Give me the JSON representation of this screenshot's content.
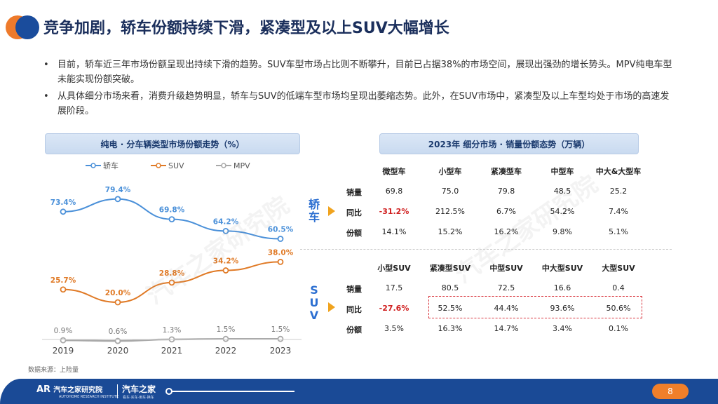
{
  "title": "竞争加剧，轿车份额持续下滑，紧凑型及以上SUV大幅增长",
  "bullets": [
    "目前，轿车近三年市场份额呈现出持续下滑的趋势。SUV车型市场占比则不断攀升，目前已占据38%的市场空间，展现出强劲的增长势头。MPV纯电车型未能实现份额突破。",
    "从具体细分市场来看，消费升级趋势明显，轿车与SUV的低端车型市场均呈现出萎缩态势。此外，在SUV市场中，紧凑型及以上车型均处于市场的高速发展阶段。"
  ],
  "left_header": "纯电 · 分车辆类型市场份额走势（%）",
  "right_header": "2023年 细分市场 · 销量份额态势（万辆）",
  "source_note": "数据来源：上险量",
  "watermark": "汽车之家研究院",
  "chart_data": {
    "type": "line",
    "x": [
      "2019",
      "2020",
      "2021",
      "2022",
      "2023"
    ],
    "series": [
      {
        "name": "轿车",
        "color": "#4a90d9",
        "values": [
          73.4,
          79.4,
          69.8,
          64.2,
          60.5
        ]
      },
      {
        "name": "SUV",
        "color": "#e07a26",
        "values": [
          25.7,
          20.0,
          28.8,
          34.2,
          38.0
        ]
      },
      {
        "name": "MPV",
        "color": "#a8a8a8",
        "values": [
          0.9,
          0.6,
          1.3,
          1.5,
          1.5
        ]
      }
    ],
    "labels": [
      [
        "73.4%",
        "79.4%",
        "69.8%",
        "64.2%",
        "60.5%"
      ],
      [
        "25.7%",
        "20.0%",
        "28.8%",
        "34.2%",
        "38.0%"
      ],
      [
        "0.9%",
        "0.6%",
        "1.3%",
        "1.5%",
        "1.5%"
      ]
    ],
    "legend_position": "top"
  },
  "sedan": {
    "side_label": "轿车",
    "columns": [
      "微型车",
      "小型车",
      "紧凑型车",
      "中型车",
      "中大&大型车"
    ],
    "rows": [
      {
        "label": "销量",
        "values": [
          "69.8",
          "75.0",
          "79.8",
          "48.5",
          "25.2"
        ]
      },
      {
        "label": "同比",
        "values": [
          "-31.2%",
          "212.5%",
          "6.7%",
          "54.2%",
          "7.4%"
        ]
      },
      {
        "label": "份额",
        "values": [
          "14.1%",
          "15.2%",
          "16.2%",
          "9.8%",
          "5.1%"
        ]
      }
    ]
  },
  "suv": {
    "side_label": "SUV",
    "columns": [
      "小型SUV",
      "紧凑型SUV",
      "中型SUV",
      "中大型SUV",
      "大型SUV"
    ],
    "rows": [
      {
        "label": "销量",
        "values": [
          "17.5",
          "80.5",
          "72.5",
          "16.6",
          "0.4"
        ]
      },
      {
        "label": "同比",
        "values": [
          "-27.6%",
          "52.5%",
          "44.4%",
          "93.6%",
          "50.6%"
        ]
      },
      {
        "label": "份额",
        "values": [
          "3.5%",
          "16.3%",
          "14.7%",
          "3.4%",
          "0.1%"
        ]
      }
    ]
  },
  "footer": {
    "brand": "汽车之家研究院",
    "brand_sub": "AUTOHOME RESEARCH INSTITUTE",
    "brand2": "汽车之家",
    "brand2_sub": "看车·买车·用车·换车",
    "page_number": "8"
  }
}
